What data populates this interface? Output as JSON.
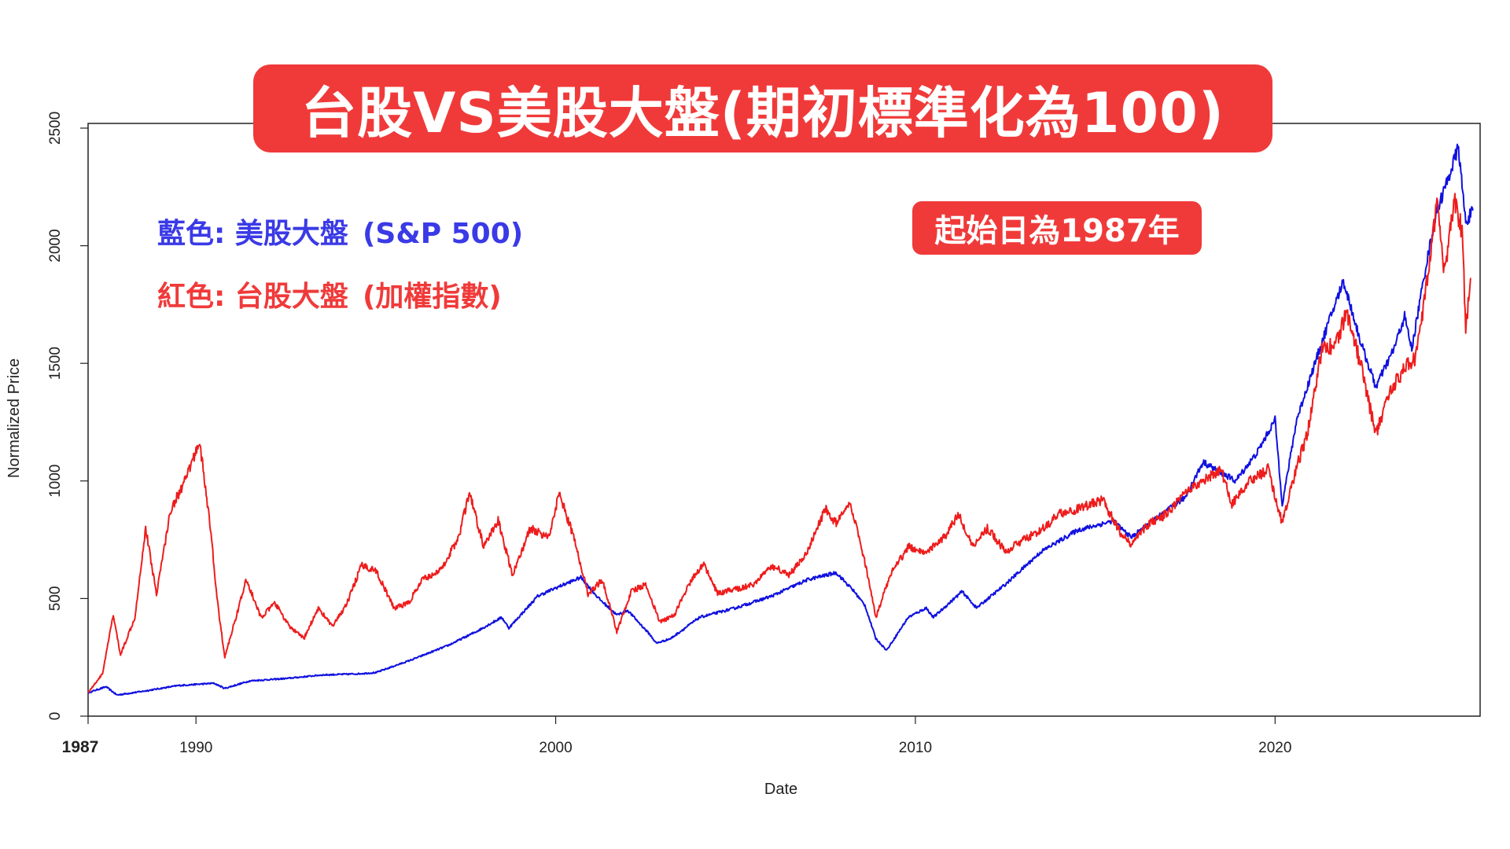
{
  "title": "台股VS美股大盤(期初標準化為100)",
  "start_note": "起始日為1987年",
  "legend": {
    "blue_prefix": "藍色: 美股大盤",
    "blue_suffix": "(S&P 500)",
    "red_prefix": "紅色: 台股大盤",
    "red_suffix": "(加權指數)"
  },
  "colors": {
    "blue_series": "#1010e0",
    "red_series": "#ee1c1c",
    "title_bg": "#f03a3a"
  },
  "chart_data": {
    "type": "line",
    "title": "台股VS美股大盤(期初標準化為100)",
    "xlabel": "Date",
    "ylabel": "Normalized Price",
    "xlim": [
      1987.0,
      2025.7
    ],
    "ylim": [
      0,
      2520
    ],
    "x_ticks": [
      {
        "value": 1987,
        "label": "1987",
        "bold": true
      },
      {
        "value": 1990,
        "label": "1990",
        "bold": false
      },
      {
        "value": 2000,
        "label": "2000",
        "bold": false
      },
      {
        "value": 2010,
        "label": "2010",
        "bold": false
      },
      {
        "value": 2020,
        "label": "2020",
        "bold": false
      }
    ],
    "y_ticks": [
      0,
      500,
      1000,
      1500,
      2000,
      2500
    ],
    "series": [
      {
        "name": "S&P 500",
        "color": "#1010e0",
        "points": [
          [
            1987.0,
            100
          ],
          [
            1987.5,
            125
          ],
          [
            1987.8,
            90
          ],
          [
            1988.5,
            105
          ],
          [
            1989.5,
            130
          ],
          [
            1990.5,
            140
          ],
          [
            1990.8,
            118
          ],
          [
            1991.5,
            150
          ],
          [
            1992.5,
            160
          ],
          [
            1993.5,
            175
          ],
          [
            1994.5,
            180
          ],
          [
            1995.0,
            185
          ],
          [
            1996.0,
            240
          ],
          [
            1997.0,
            300
          ],
          [
            1997.8,
            360
          ],
          [
            1998.5,
            420
          ],
          [
            1998.7,
            375
          ],
          [
            1999.5,
            510
          ],
          [
            2000.0,
            545
          ],
          [
            2000.7,
            590
          ],
          [
            2001.2,
            500
          ],
          [
            2001.7,
            430
          ],
          [
            2002.0,
            450
          ],
          [
            2002.6,
            350
          ],
          [
            2002.8,
            310
          ],
          [
            2003.2,
            330
          ],
          [
            2004.0,
            420
          ],
          [
            2005.0,
            460
          ],
          [
            2006.0,
            510
          ],
          [
            2007.0,
            580
          ],
          [
            2007.8,
            610
          ],
          [
            2008.3,
            530
          ],
          [
            2008.6,
            470
          ],
          [
            2008.9,
            330
          ],
          [
            2009.2,
            280
          ],
          [
            2009.8,
            420
          ],
          [
            2010.3,
            460
          ],
          [
            2010.5,
            420
          ],
          [
            2011.3,
            530
          ],
          [
            2011.7,
            460
          ],
          [
            2012.5,
            560
          ],
          [
            2013.5,
            700
          ],
          [
            2014.5,
            790
          ],
          [
            2015.5,
            830
          ],
          [
            2016.0,
            760
          ],
          [
            2016.5,
            820
          ],
          [
            2017.5,
            930
          ],
          [
            2018.0,
            1080
          ],
          [
            2018.9,
            1000
          ],
          [
            2019.5,
            1120
          ],
          [
            2020.0,
            1260
          ],
          [
            2020.2,
            900
          ],
          [
            2020.6,
            1260
          ],
          [
            2021.0,
            1450
          ],
          [
            2021.5,
            1680
          ],
          [
            2021.9,
            1850
          ],
          [
            2022.4,
            1580
          ],
          [
            2022.8,
            1400
          ],
          [
            2023.3,
            1560
          ],
          [
            2023.6,
            1700
          ],
          [
            2023.8,
            1560
          ],
          [
            2024.2,
            1920
          ],
          [
            2024.5,
            2150
          ],
          [
            2024.8,
            2280
          ],
          [
            2025.1,
            2420
          ],
          [
            2025.2,
            2250
          ],
          [
            2025.3,
            2100
          ],
          [
            2025.5,
            2150
          ]
        ]
      },
      {
        "name": "加權指數",
        "color": "#ee1c1c",
        "points": [
          [
            1987.0,
            100
          ],
          [
            1987.4,
            180
          ],
          [
            1987.7,
            430
          ],
          [
            1987.9,
            260
          ],
          [
            1988.3,
            420
          ],
          [
            1988.6,
            800
          ],
          [
            1988.9,
            520
          ],
          [
            1989.3,
            880
          ],
          [
            1989.7,
            1000
          ],
          [
            1990.1,
            1170
          ],
          [
            1990.4,
            800
          ],
          [
            1990.6,
            480
          ],
          [
            1990.8,
            250
          ],
          [
            1991.2,
            470
          ],
          [
            1991.4,
            580
          ],
          [
            1991.8,
            420
          ],
          [
            1992.2,
            480
          ],
          [
            1992.6,
            380
          ],
          [
            1993.0,
            330
          ],
          [
            1993.4,
            460
          ],
          [
            1993.8,
            380
          ],
          [
            1994.2,
            480
          ],
          [
            1994.6,
            640
          ],
          [
            1995.0,
            620
          ],
          [
            1995.5,
            460
          ],
          [
            1995.9,
            480
          ],
          [
            1996.3,
            580
          ],
          [
            1996.8,
            620
          ],
          [
            1997.3,
            760
          ],
          [
            1997.6,
            950
          ],
          [
            1998.0,
            720
          ],
          [
            1998.4,
            830
          ],
          [
            1998.8,
            600
          ],
          [
            1999.3,
            800
          ],
          [
            1999.8,
            760
          ],
          [
            2000.1,
            950
          ],
          [
            2000.5,
            760
          ],
          [
            2000.9,
            520
          ],
          [
            2001.3,
            580
          ],
          [
            2001.7,
            360
          ],
          [
            2002.1,
            530
          ],
          [
            2002.5,
            560
          ],
          [
            2002.9,
            400
          ],
          [
            2003.3,
            430
          ],
          [
            2003.7,
            560
          ],
          [
            2004.1,
            650
          ],
          [
            2004.5,
            520
          ],
          [
            2005.0,
            540
          ],
          [
            2005.5,
            560
          ],
          [
            2006.0,
            640
          ],
          [
            2006.5,
            600
          ],
          [
            2007.0,
            700
          ],
          [
            2007.5,
            880
          ],
          [
            2007.8,
            820
          ],
          [
            2008.2,
            900
          ],
          [
            2008.6,
            650
          ],
          [
            2008.9,
            420
          ],
          [
            2009.3,
            600
          ],
          [
            2009.8,
            720
          ],
          [
            2010.3,
            700
          ],
          [
            2010.8,
            760
          ],
          [
            2011.2,
            860
          ],
          [
            2011.6,
            720
          ],
          [
            2012.0,
            800
          ],
          [
            2012.5,
            700
          ],
          [
            2013.0,
            750
          ],
          [
            2013.5,
            790
          ],
          [
            2014.0,
            860
          ],
          [
            2014.5,
            880
          ],
          [
            2015.2,
            920
          ],
          [
            2015.7,
            780
          ],
          [
            2016.0,
            730
          ],
          [
            2016.5,
            820
          ],
          [
            2017.0,
            860
          ],
          [
            2017.5,
            950
          ],
          [
            2018.0,
            1000
          ],
          [
            2018.5,
            1050
          ],
          [
            2018.8,
            900
          ],
          [
            2019.3,
            1000
          ],
          [
            2019.8,
            1050
          ],
          [
            2020.2,
            820
          ],
          [
            2020.6,
            1060
          ],
          [
            2020.9,
            1200
          ],
          [
            2021.3,
            1560
          ],
          [
            2021.7,
            1580
          ],
          [
            2022.0,
            1720
          ],
          [
            2022.4,
            1480
          ],
          [
            2022.8,
            1200
          ],
          [
            2023.2,
            1380
          ],
          [
            2023.6,
            1480
          ],
          [
            2023.9,
            1520
          ],
          [
            2024.2,
            1820
          ],
          [
            2024.5,
            2170
          ],
          [
            2024.7,
            1900
          ],
          [
            2025.0,
            2180
          ],
          [
            2025.2,
            2060
          ],
          [
            2025.3,
            1660
          ],
          [
            2025.45,
            1860
          ]
        ]
      }
    ]
  }
}
